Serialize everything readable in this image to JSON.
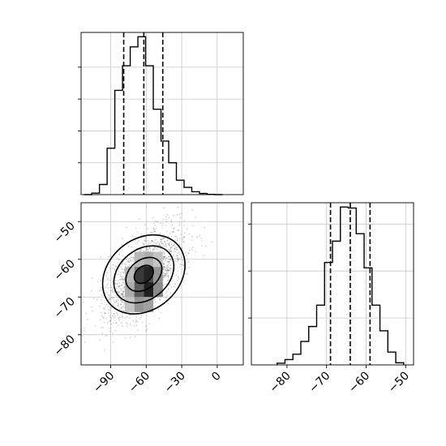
{
  "chart_data": {
    "type": "corner",
    "panels": [
      {
        "id": "hist_x",
        "type": "step-histogram",
        "xlim": [
          -115,
          22
        ],
        "bins": [
          -112.5,
          -106,
          -99.5,
          -93,
          -86.5,
          -80,
          -73.5,
          -67,
          -60.5,
          -54,
          -47.5,
          -41,
          -34.5,
          -28,
          -21.5,
          -15,
          -8.5,
          -2,
          4.5
        ],
        "counts": [
          0,
          5,
          35,
          160,
          360,
          445,
          510,
          545,
          445,
          295,
          185,
          110,
          50,
          25,
          10,
          4,
          1,
          0
        ],
        "ylim": [
          0,
          560
        ],
        "quantiles": [
          -79,
          -62,
          -46
        ]
      },
      {
        "id": "joint",
        "type": "2d-hist-contour",
        "xlim": [
          -115,
          22
        ],
        "ylim": [
          -88,
          -45
        ],
        "xticks": [
          -90,
          -60,
          -30,
          0
        ],
        "xtick_labels": [
          "−90",
          "−60",
          "−30",
          "0"
        ],
        "yticks": [
          -50,
          -60,
          -70,
          -80
        ],
        "ytick_labels": [
          "−50",
          "−60",
          "−70",
          "−80"
        ],
        "center": [
          -62,
          -64
        ],
        "contour_levels": [
          {
            "rx": 38,
            "ry": 13.5,
            "rotation_deg": -40
          },
          {
            "rx": 28,
            "ry": 9.5,
            "rotation_deg": -40
          },
          {
            "rx": 17,
            "ry": 5.5,
            "rotation_deg": -40
          },
          {
            "rx": 9,
            "ry": 3,
            "rotation_deg": -40
          }
        ]
      },
      {
        "id": "hist_y",
        "type": "step-histogram",
        "xlim": [
          -89,
          -48
        ],
        "xticks": [
          -80,
          -70,
          -60,
          -50
        ],
        "xtick_labels": [
          "−80",
          "−70",
          "−60",
          "−50"
        ],
        "bins": [
          -82.5,
          -80.5,
          -78.5,
          -76.5,
          -74.5,
          -72.5,
          -70.5,
          -68.5,
          -66.5,
          -64.5,
          -62.5,
          -60.5,
          -58.5,
          -56.5,
          -54.5,
          -52.5,
          -50.5
        ],
        "counts": [
          8,
          25,
          50,
          110,
          180,
          280,
          480,
          580,
          740,
          735,
          615,
          455,
          280,
          160,
          60,
          10
        ],
        "ylim": [
          0,
          760
        ],
        "quantiles": [
          -69,
          -64,
          -59
        ]
      }
    ]
  }
}
